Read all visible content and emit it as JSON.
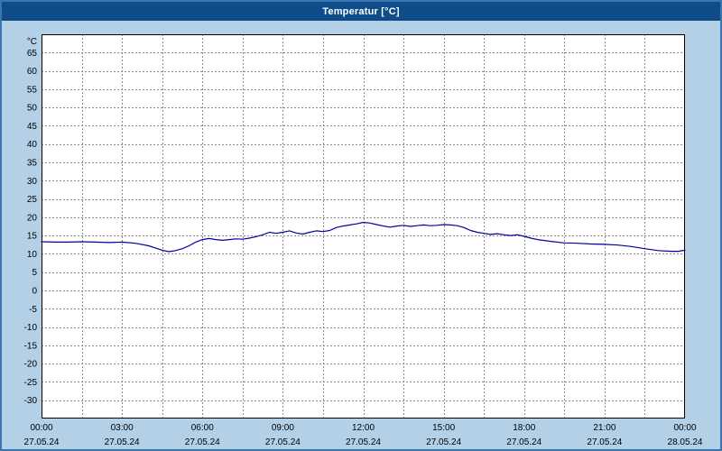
{
  "window": {
    "title": "Temperatur [°C]"
  },
  "colors": {
    "frame_background": "#b3d0e7",
    "frame_border": "#3a76ad",
    "titlebar_background": "#0e4c8a",
    "titlebar_text": "#ffffff",
    "plot_background": "#ffffff",
    "plot_border": "#000000",
    "gridline": "#8a8a8a",
    "tick_text": "#000000",
    "series_line": "#0000a0"
  },
  "chart_data": {
    "type": "line",
    "title": "Temperatur [°C]",
    "xlabel": "",
    "ylabel": "°C",
    "ylim": [
      -35,
      70
    ],
    "xlim_hours": [
      0,
      24
    ],
    "grid": "dashed",
    "legend": "none",
    "y_ticks": [
      65,
      60,
      55,
      50,
      45,
      40,
      35,
      30,
      25,
      20,
      15,
      10,
      5,
      0,
      -5,
      -10,
      -15,
      -20,
      -25,
      -30
    ],
    "y_axis_unit_label": "°C",
    "x_gridline_step_hours": 1.5,
    "x_ticks": [
      {
        "hour": 0,
        "time": "00:00",
        "date": "27.05.24"
      },
      {
        "hour": 3,
        "time": "03:00",
        "date": "27.05.24"
      },
      {
        "hour": 6,
        "time": "06:00",
        "date": "27.05.24"
      },
      {
        "hour": 9,
        "time": "09:00",
        "date": "27.05.24"
      },
      {
        "hour": 12,
        "time": "12:00",
        "date": "27.05.24"
      },
      {
        "hour": 15,
        "time": "15:00",
        "date": "27.05.24"
      },
      {
        "hour": 18,
        "time": "18:00",
        "date": "27.05.24"
      },
      {
        "hour": 21,
        "time": "21:00",
        "date": "27.05.24"
      },
      {
        "hour": 24,
        "time": "00:00",
        "date": "28.05.24"
      }
    ],
    "series": [
      {
        "name": "Temperatur",
        "unit": "°C",
        "color": "#0000a0",
        "points": [
          [
            0.0,
            13.3
          ],
          [
            0.5,
            13.2
          ],
          [
            1.0,
            13.2
          ],
          [
            1.5,
            13.3
          ],
          [
            2.0,
            13.2
          ],
          [
            2.5,
            13.1
          ],
          [
            3.0,
            13.2
          ],
          [
            3.5,
            12.9
          ],
          [
            4.0,
            12.2
          ],
          [
            4.25,
            11.6
          ],
          [
            4.5,
            11.0
          ],
          [
            4.75,
            10.6
          ],
          [
            5.0,
            10.9
          ],
          [
            5.25,
            11.4
          ],
          [
            5.5,
            12.2
          ],
          [
            5.75,
            13.2
          ],
          [
            6.0,
            13.9
          ],
          [
            6.25,
            14.2
          ],
          [
            6.5,
            13.9
          ],
          [
            6.75,
            13.7
          ],
          [
            7.0,
            13.9
          ],
          [
            7.25,
            14.1
          ],
          [
            7.5,
            14.0
          ],
          [
            7.75,
            14.3
          ],
          [
            8.0,
            14.7
          ],
          [
            8.25,
            15.2
          ],
          [
            8.5,
            15.9
          ],
          [
            8.75,
            15.6
          ],
          [
            9.0,
            15.9
          ],
          [
            9.25,
            16.3
          ],
          [
            9.5,
            15.7
          ],
          [
            9.75,
            15.4
          ],
          [
            10.0,
            15.9
          ],
          [
            10.25,
            16.3
          ],
          [
            10.5,
            16.1
          ],
          [
            10.75,
            16.4
          ],
          [
            11.0,
            17.2
          ],
          [
            11.25,
            17.6
          ],
          [
            11.5,
            17.9
          ],
          [
            11.75,
            18.2
          ],
          [
            12.0,
            18.6
          ],
          [
            12.25,
            18.4
          ],
          [
            12.5,
            18.0
          ],
          [
            12.75,
            17.6
          ],
          [
            13.0,
            17.3
          ],
          [
            13.25,
            17.6
          ],
          [
            13.5,
            17.8
          ],
          [
            13.75,
            17.5
          ],
          [
            14.0,
            17.7
          ],
          [
            14.25,
            17.9
          ],
          [
            14.5,
            17.7
          ],
          [
            14.75,
            17.8
          ],
          [
            15.0,
            18.0
          ],
          [
            15.25,
            17.9
          ],
          [
            15.5,
            17.7
          ],
          [
            15.75,
            17.2
          ],
          [
            16.0,
            16.4
          ],
          [
            16.25,
            15.9
          ],
          [
            16.5,
            15.6
          ],
          [
            16.75,
            15.3
          ],
          [
            17.0,
            15.5
          ],
          [
            17.25,
            15.2
          ],
          [
            17.5,
            15.0
          ],
          [
            17.75,
            15.2
          ],
          [
            18.0,
            14.8
          ],
          [
            18.25,
            14.3
          ],
          [
            18.5,
            13.9
          ],
          [
            19.0,
            13.4
          ],
          [
            19.5,
            13.0
          ],
          [
            20.0,
            12.9
          ],
          [
            20.5,
            12.7
          ],
          [
            21.0,
            12.6
          ],
          [
            21.5,
            12.4
          ],
          [
            22.0,
            12.0
          ],
          [
            22.5,
            11.4
          ],
          [
            23.0,
            10.9
          ],
          [
            23.5,
            10.7
          ],
          [
            23.75,
            10.7
          ],
          [
            24.0,
            11.0
          ]
        ]
      }
    ]
  }
}
